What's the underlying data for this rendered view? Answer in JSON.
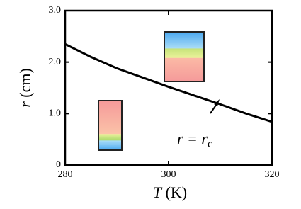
{
  "chart_data": {
    "type": "line",
    "x": [
      280,
      285,
      290,
      295,
      300,
      305,
      310,
      315,
      320
    ],
    "series": [
      {
        "color": "#000000",
        "values": [
          2.35,
          2.1,
          1.88,
          1.7,
          1.52,
          1.35,
          1.18,
          1.0,
          0.84
        ]
      }
    ],
    "xlim": [
      280,
      320
    ],
    "xticks": [
      280,
      300,
      320
    ],
    "ylim": [
      0,
      3
    ],
    "yticks": [
      0,
      {
        "value": 1,
        "label": "1.0"
      },
      {
        "value": 2,
        "label": "2.0"
      },
      {
        "value": 3,
        "label": "3.0"
      }
    ],
    "xlabel_symbol": "T",
    "xlabel_unit": "(K)",
    "ylabel_symbol": "r",
    "ylabel_unit": "(cm)",
    "annotation": "r = r",
    "annotation_sub": "c"
  }
}
